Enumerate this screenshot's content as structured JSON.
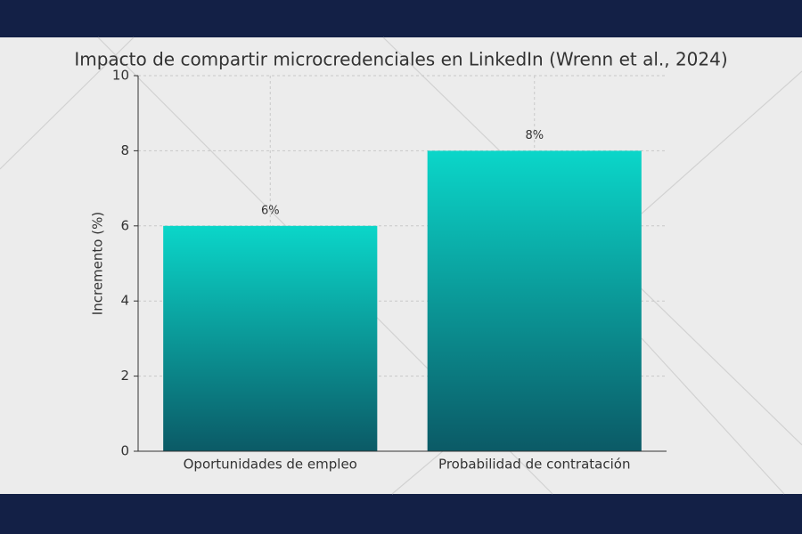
{
  "chart_data": {
    "type": "bar",
    "title": "Impacto de compartir microcredenciales en LinkedIn (Wrenn et al., 2024)",
    "y_label": "Incremento (%)",
    "categories": [
      "Oportunidades de empleo",
      "Probabilidad de contratación"
    ],
    "values": [
      6,
      8
    ],
    "value_labels": [
      "6%",
      "8%"
    ],
    "color": "#0ab3b0",
    "ylim": [
      0,
      10
    ],
    "yticks": [
      0,
      2,
      4,
      6,
      8,
      10
    ],
    "grid": true
  }
}
